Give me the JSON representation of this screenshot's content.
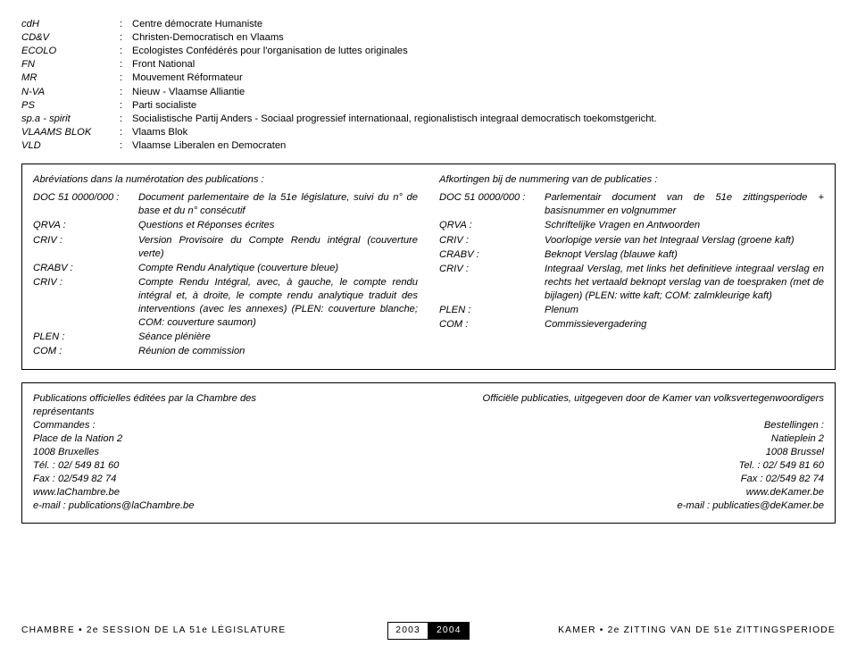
{
  "parties": [
    {
      "abbr": "cdH",
      "full": "Centre démocrate Humaniste"
    },
    {
      "abbr": "CD&V",
      "full": "Christen-Democratisch en Vlaams"
    },
    {
      "abbr": "ECOLO",
      "full": "Ecologistes Confédérés pour l'organisation de luttes originales"
    },
    {
      "abbr": "FN",
      "full": "Front National"
    },
    {
      "abbr": "MR",
      "full": "Mouvement Réformateur"
    },
    {
      "abbr": "N-VA",
      "full": "Nieuw - Vlaamse Alliantie"
    },
    {
      "abbr": "PS",
      "full": "Parti socialiste"
    },
    {
      "abbr": "sp.a - spirit",
      "full": "Socialistische Partij Anders - Sociaal progressief internationaal, regionalistisch integraal democratisch toekomstgericht."
    },
    {
      "abbr": "VLAAMS BLOK",
      "full": "Vlaams Blok"
    },
    {
      "abbr": "VLD",
      "full": "Vlaamse Liberalen en Democraten"
    }
  ],
  "abbr_fr": {
    "heading": "Abréviations dans la numérotation des publications :",
    "items": [
      {
        "code": "DOC 51 0000/000 :",
        "desc": "Document parlementaire de la 51e législature, suivi du n° de base et du n° consécutif"
      },
      {
        "code": "QRVA :",
        "desc": "Questions et Réponses écrites"
      },
      {
        "code": "CRIV :",
        "desc": "Version Provisoire du Compte Rendu intégral (couverture verte)"
      },
      {
        "code": "CRABV :",
        "desc": "Compte Rendu Analytique (couverture bleue)"
      },
      {
        "code": "CRIV :",
        "desc": "Compte Rendu Intégral, avec, à gauche, le compte rendu intégral et, à droite, le compte rendu analytique traduit des interventions (avec les annexes)\n(PLEN: couverture blanche; COM: couverture saumon)"
      },
      {
        "code": "PLEN :",
        "desc": "Séance plénière"
      },
      {
        "code": "COM :",
        "desc": "Réunion de commission"
      }
    ]
  },
  "abbr_nl": {
    "heading": "Afkortingen bij de nummering van de publicaties :",
    "items": [
      {
        "code": "DOC 51 0000/000 :",
        "desc": "Parlementair document van de 51e zittingsperiode + basisnummer en volgnummer"
      },
      {
        "code": "QRVA :",
        "desc": "Schriftelijke Vragen en Antwoorden"
      },
      {
        "code": "CRIV :",
        "desc": "Voorlopige versie van het Integraal Verslag (groene kaft)"
      },
      {
        "code": "CRABV :",
        "desc": "Beknopt Verslag (blauwe kaft)"
      },
      {
        "code": "CRIV :",
        "desc": "Integraal Verslag, met links het definitieve integraal verslag en rechts het vertaald beknopt verslag van de toespraken (met de bijlagen)\n(PLEN: witte kaft; COM: zalmkleurige kaft)"
      },
      {
        "code": "PLEN :",
        "desc": "Plenum"
      },
      {
        "code": "COM :",
        "desc": "Commissievergadering"
      }
    ]
  },
  "pub_fr": [
    "Publications officielles éditées par la Chambre des",
    "représentants",
    "Commandes :",
    "Place de la Nation 2",
    "1008 Bruxelles",
    "Tél. : 02/ 549 81 60",
    "Fax : 02/549 82 74",
    "www.laChambre.be",
    "e-mail  :  publications@laChambre.be"
  ],
  "pub_nl": [
    "Officiële publicaties, uitgegeven door de Kamer van volksvertegenwoordigers",
    "",
    "Bestellingen :",
    "Natieplein 2",
    "1008 Brussel",
    "Tel. : 02/ 549 81 60",
    "Fax : 02/549 82 74",
    "www.deKamer.be",
    "e-mail : publicaties@deKamer.be"
  ],
  "footer": {
    "left": "CHAMBRE • 2e  SESSION DE LA 51e LÉGISLATURE",
    "year1": "2003",
    "year2": "2004",
    "right": "KAMER • 2e   ZITTING VAN DE 51e ZITTINGSPERIODE"
  }
}
